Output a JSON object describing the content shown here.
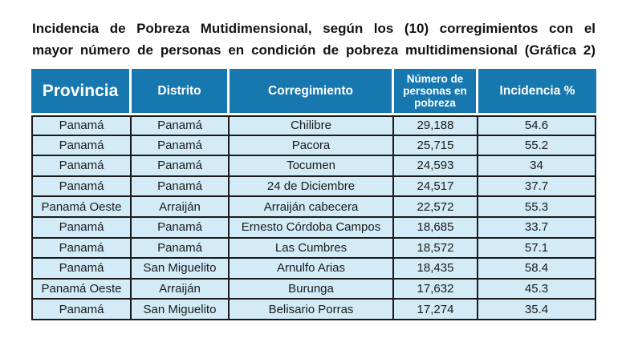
{
  "title": {
    "line1": "Incidencia de Pobreza Mutidimensional, según los (10) corregimientos con el",
    "line2": "mayor número de personas en condición de pobreza multidimensional (Gráfica 2)"
  },
  "table": {
    "columns": [
      "Provincia",
      "Distrito",
      "Corregimiento",
      "Número de personas en pobreza",
      "Incidencia %"
    ],
    "rows": [
      [
        "Panamá",
        "Panamá",
        "Chilibre",
        "29,188",
        "54.6"
      ],
      [
        "Panamá",
        "Panamá",
        "Pacora",
        "25,715",
        "55.2"
      ],
      [
        "Panamá",
        "Panamá",
        "Tocumen",
        "24,593",
        "34"
      ],
      [
        "Panamá",
        "Panamá",
        "24 de Diciembre",
        "24,517",
        "37.7"
      ],
      [
        "Panamá Oeste",
        "Arraiján",
        "Arraiján cabecera",
        "22,572",
        "55.3"
      ],
      [
        "Panamá",
        "Panamá",
        "Ernesto Córdoba Campos",
        "18,685",
        "33.7"
      ],
      [
        "Panamá",
        "Panamá",
        "Las Cumbres",
        "18,572",
        "57.1"
      ],
      [
        "Panamá",
        "San Miguelito",
        "Arnulfo Arias",
        "18,435",
        "58.4"
      ],
      [
        "Panamá Oeste",
        "Arraiján",
        "Burunga",
        "17,632",
        "45.3"
      ],
      [
        "Panamá",
        "San Miguelito",
        "Belisario Porras",
        "17,274",
        "35.4"
      ]
    ]
  },
  "colors": {
    "header_bg": "#1778B0",
    "header_text": "#FFFFFF",
    "row_bg": "#D2EBF7",
    "border": "#1A1A1A",
    "title_text": "#121212"
  },
  "chart_data": {
    "type": "table",
    "title": "Incidencia de Pobreza Mutidimensional, según los (10) corregimientos con el mayor número de personas en condición de pobreza multidimensional (Gráfica 2)",
    "columns": [
      "Provincia",
      "Distrito",
      "Corregimiento",
      "Número de personas en pobreza",
      "Incidencia %"
    ],
    "rows": [
      [
        "Panamá",
        "Panamá",
        "Chilibre",
        29188,
        54.6
      ],
      [
        "Panamá",
        "Panamá",
        "Pacora",
        25715,
        55.2
      ],
      [
        "Panamá",
        "Panamá",
        "Tocumen",
        24593,
        34
      ],
      [
        "Panamá",
        "Panamá",
        "24 de Diciembre",
        24517,
        37.7
      ],
      [
        "Panamá Oeste",
        "Arraiján",
        "Arraiján cabecera",
        22572,
        55.3
      ],
      [
        "Panamá",
        "Panamá",
        "Ernesto Córdoba Campos",
        18685,
        33.7
      ],
      [
        "Panamá",
        "Panamá",
        "Las Cumbres",
        18572,
        57.1
      ],
      [
        "Panamá",
        "San Miguelito",
        "Arnulfo Arias",
        18435,
        58.4
      ],
      [
        "Panamá Oeste",
        "Arraiján",
        "Burunga",
        17632,
        45.3
      ],
      [
        "Panamá",
        "San Miguelito",
        "Belisario Porras",
        17274,
        35.4
      ]
    ]
  }
}
